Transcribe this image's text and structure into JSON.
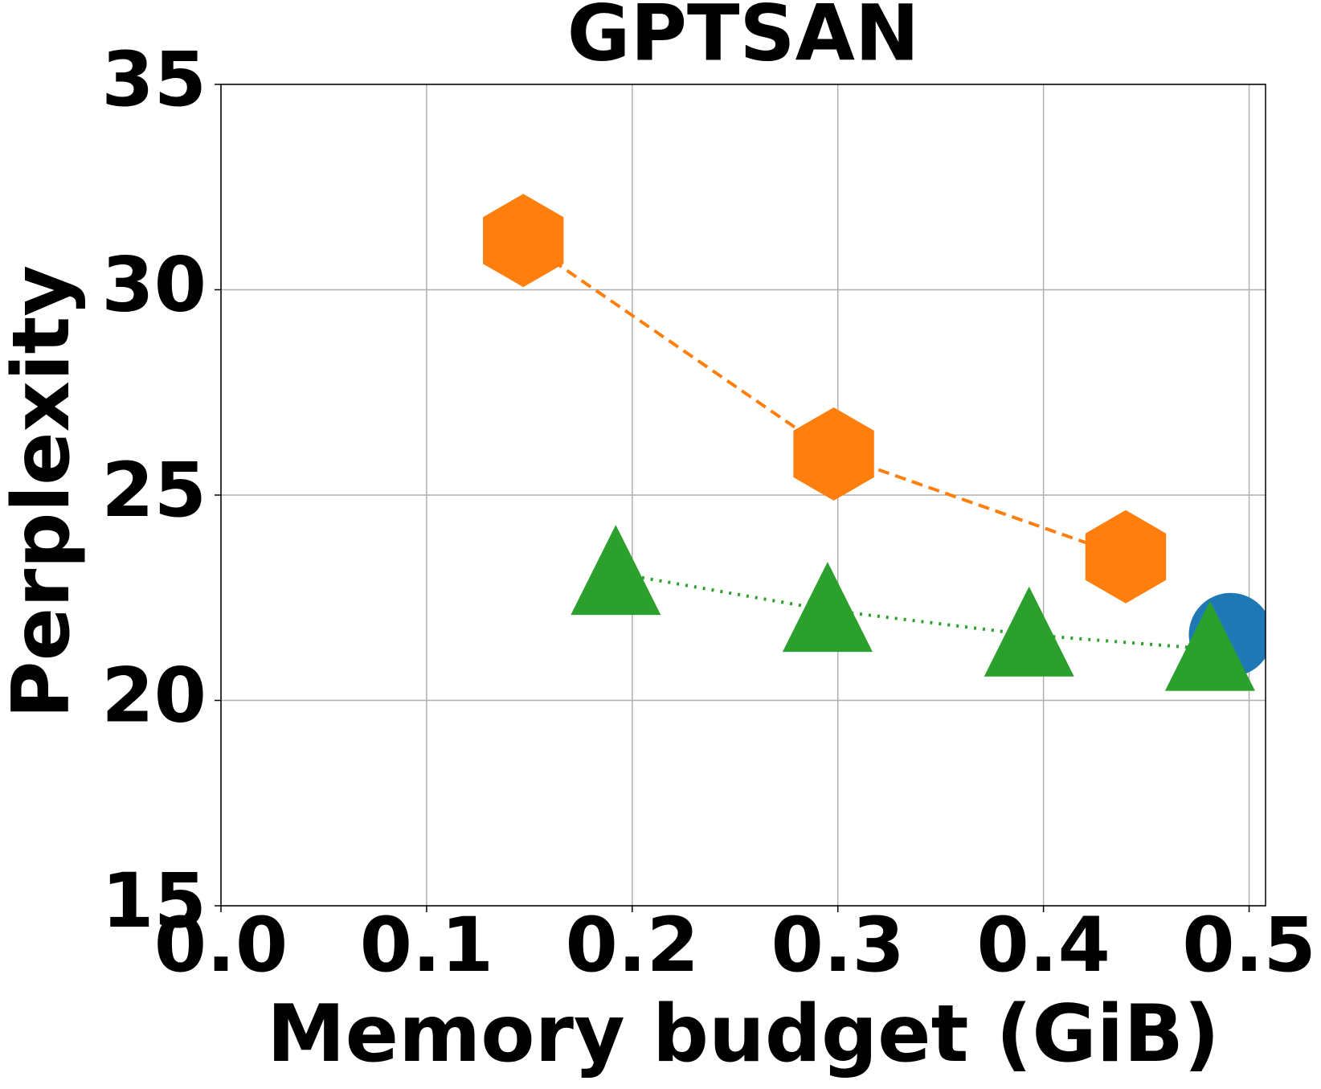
{
  "chart_data": {
    "type": "scatter",
    "title": "GPTSAN",
    "x_label": "Memory budget (GiB)",
    "y_label": "Perplexity",
    "xlim": [
      0.0,
      0.508
    ],
    "ylim": [
      15,
      35
    ],
    "xticks": [
      {
        "value": 0.0,
        "label": "0.0"
      },
      0.1,
      0.2,
      0.3,
      0.4,
      0.5
    ],
    "yticks": [
      15,
      20,
      25,
      30,
      35
    ],
    "grid": true,
    "series": [
      {
        "color": "#1f77b4",
        "marker": "circle",
        "linestyle": "none",
        "x": [
          0.491
        ],
        "values": [
          21.6
        ]
      },
      {
        "color": "#ff7f0e",
        "marker": "hexagon",
        "linestyle": "dashed",
        "x": [
          0.147,
          0.298,
          0.44
        ],
        "values": [
          31.2,
          26.0,
          23.5
        ]
      },
      {
        "color": "#2ca02c",
        "marker": "triangle",
        "linestyle": "dotted",
        "x": [
          0.192,
          0.295,
          0.393,
          0.481
        ],
        "values": [
          23.1,
          22.2,
          21.6,
          21.25
        ]
      }
    ]
  }
}
